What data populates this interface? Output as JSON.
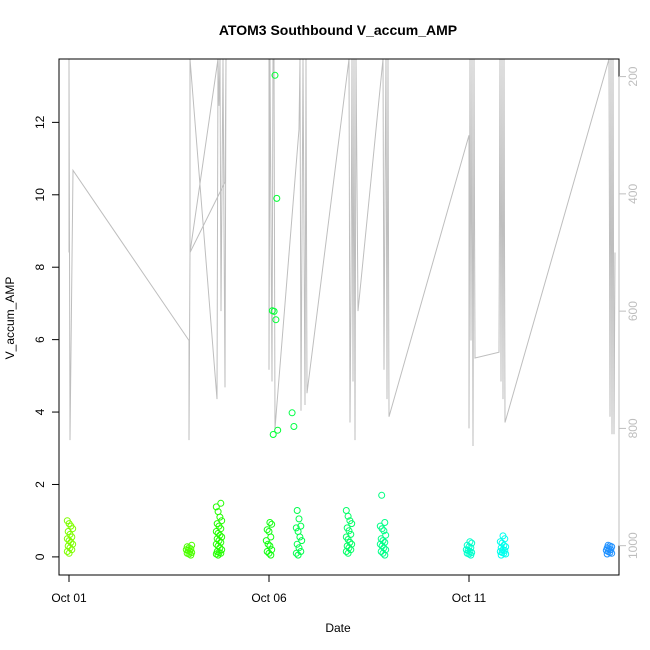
{
  "chart_data": {
    "type": "scatter",
    "title": "ATOM3 Southbound V_accum_AMP",
    "xlabel": "Date",
    "ylabel": "V_accum_AMP",
    "ylim": [
      -0.5,
      13.75
    ],
    "y2lim": [
      1050,
      170
    ],
    "y2_reversed": true,
    "xlim": [
      -0.5,
      27.5
    ],
    "x_ticks": [
      {
        "value": 0,
        "label": "Oct 01"
      },
      {
        "value": 10,
        "label": "Oct 06"
      },
      {
        "value": 20,
        "label": "Oct 11"
      }
    ],
    "y_ticks": [
      0,
      2,
      4,
      6,
      8,
      10,
      12
    ],
    "y2_ticks": [
      200,
      400,
      600,
      800,
      1000
    ],
    "series_colors": {
      "line": "#bebebe",
      "point_ramp": [
        "#7fff00",
        "#00ff00",
        "#00ff7f",
        "#00ffff",
        "#1e90ff"
      ]
    },
    "point_clusters": [
      {
        "x": 0.05,
        "color": "#7fff00",
        "values": [
          1.0,
          0.92,
          0.85,
          0.78,
          0.7,
          0.62,
          0.55,
          0.5,
          0.45,
          0.4,
          0.35,
          0.3,
          0.25,
          0.2,
          0.15,
          0.1
        ]
      },
      {
        "x": 6.0,
        "color": "#4cff00",
        "values": [
          0.32,
          0.28,
          0.25,
          0.22,
          0.2,
          0.18,
          0.15,
          0.12,
          0.1,
          0.08,
          0.05
        ]
      },
      {
        "x": 7.5,
        "color": "#22ff00",
        "values": [
          1.48,
          1.38,
          1.25,
          1.1,
          1.0,
          0.92,
          0.85,
          0.78,
          0.7,
          0.65,
          0.6,
          0.55,
          0.5,
          0.45,
          0.4,
          0.35,
          0.3,
          0.25,
          0.2,
          0.15,
          0.12,
          0.1,
          0.08,
          0.05
        ]
      },
      {
        "x": 10.0,
        "color": "#11ff11",
        "values": [
          0.95,
          0.9,
          0.75,
          0.7,
          0.55,
          0.45,
          0.35,
          0.3,
          0.2,
          0.15,
          0.1,
          0.05
        ]
      },
      {
        "x": 10.3,
        "color": "#00ff33",
        "values": [
          13.3,
          9.9,
          6.8,
          6.78,
          6.55,
          3.5,
          3.38
        ]
      },
      {
        "x": 11.2,
        "color": "#00ff44",
        "values": [
          3.98,
          3.6
        ]
      },
      {
        "x": 11.5,
        "color": "#00ff4c",
        "values": [
          1.28,
          1.05,
          0.85,
          0.8,
          0.7,
          0.55,
          0.45,
          0.35,
          0.25,
          0.15,
          0.1,
          0.05
        ]
      },
      {
        "x": 14.0,
        "color": "#00ff66",
        "values": [
          1.28,
          1.12,
          1.0,
          0.92,
          0.8,
          0.72,
          0.62,
          0.55,
          0.48,
          0.4,
          0.35,
          0.3,
          0.25,
          0.2,
          0.15,
          0.1
        ]
      },
      {
        "x": 15.5,
        "color": "#00ff7f",
        "values": [
          1.7
        ]
      },
      {
        "x": 15.7,
        "color": "#00ff88",
        "values": [
          0.95,
          0.85,
          0.78,
          0.72,
          0.6,
          0.5,
          0.45,
          0.4,
          0.35,
          0.3,
          0.25,
          0.2,
          0.15,
          0.1,
          0.05
        ]
      },
      {
        "x": 20.0,
        "color": "#00ffcc",
        "values": [
          0.42,
          0.38,
          0.32,
          0.28,
          0.25,
          0.2,
          0.18,
          0.15,
          0.12,
          0.1,
          0.08,
          0.05
        ]
      },
      {
        "x": 21.7,
        "color": "#00ffee",
        "values": [
          0.58,
          0.5,
          0.42,
          0.38,
          0.32,
          0.28,
          0.25,
          0.2,
          0.18,
          0.15,
          0.12,
          0.1,
          0.08,
          0.05
        ]
      },
      {
        "x": 27.0,
        "color": "#1e90ff",
        "values": [
          0.32,
          0.3,
          0.28,
          0.25,
          0.22,
          0.2,
          0.18,
          0.15,
          0.12,
          0.1,
          0.08
        ]
      }
    ],
    "line_series_y2": [
      [
        0.0,
        170
      ],
      [
        0.0,
        500
      ],
      [
        0.0,
        170
      ],
      [
        0.05,
        820
      ],
      [
        0.2,
        360
      ],
      [
        6.0,
        650
      ],
      [
        6.0,
        820
      ],
      [
        6.05,
        500
      ],
      [
        6.05,
        170
      ],
      [
        7.4,
        750
      ],
      [
        7.45,
        170
      ],
      [
        7.5,
        250
      ],
      [
        7.55,
        170
      ],
      [
        7.6,
        600
      ],
      [
        7.7,
        170
      ],
      [
        7.8,
        730
      ],
      [
        7.85,
        170
      ],
      [
        7.8,
        380
      ],
      [
        6.05,
        500
      ],
      [
        7.45,
        170
      ],
      [
        10.0,
        170
      ],
      [
        10.0,
        700
      ],
      [
        10.05,
        170
      ],
      [
        10.15,
        720
      ],
      [
        10.2,
        170
      ],
      [
        10.25,
        170
      ],
      [
        10.3,
        800
      ],
      [
        11.5,
        290
      ],
      [
        11.55,
        170
      ],
      [
        11.6,
        770
      ],
      [
        11.7,
        170
      ],
      [
        11.8,
        760
      ],
      [
        11.85,
        170
      ],
      [
        11.9,
        740
      ],
      [
        14.0,
        170
      ],
      [
        14.05,
        790
      ],
      [
        14.1,
        560
      ],
      [
        14.15,
        170
      ],
      [
        14.2,
        720
      ],
      [
        14.25,
        170
      ],
      [
        14.3,
        820
      ],
      [
        14.35,
        170
      ],
      [
        14.45,
        600
      ],
      [
        15.7,
        170
      ],
      [
        15.75,
        700
      ],
      [
        15.8,
        390
      ],
      [
        15.85,
        170
      ],
      [
        15.9,
        750
      ],
      [
        15.95,
        170
      ],
      [
        16.0,
        780
      ],
      [
        20.0,
        300
      ],
      [
        20.0,
        800
      ],
      [
        20.05,
        170
      ],
      [
        20.1,
        650
      ],
      [
        20.15,
        170
      ],
      [
        20.2,
        830
      ],
      [
        20.25,
        170
      ],
      [
        20.3,
        680
      ],
      [
        21.5,
        670
      ],
      [
        21.55,
        170
      ],
      [
        21.6,
        720
      ],
      [
        21.65,
        170
      ],
      [
        21.7,
        750
      ],
      [
        21.75,
        170
      ],
      [
        21.8,
        790
      ],
      [
        27.0,
        170
      ],
      [
        27.05,
        780
      ],
      [
        27.1,
        170
      ],
      [
        27.15,
        810
      ],
      [
        27.2,
        170
      ],
      [
        27.25,
        810
      ],
      [
        27.3,
        500
      ]
    ]
  }
}
